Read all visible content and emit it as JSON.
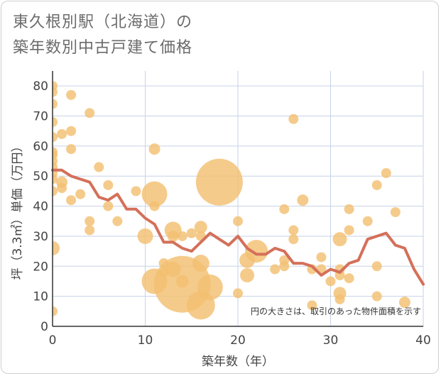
{
  "title": {
    "line1": "東久根別駅（北海道）の",
    "line2": "築年数別中古戸建て価格"
  },
  "chart_data": {
    "type": "scatter",
    "xlabel": "築年数（年）",
    "ylabel": "坪（3.3㎡）単価（万円）",
    "xlim": [
      0,
      40
    ],
    "ylim": [
      0,
      85
    ],
    "xticks": [
      0,
      10,
      20,
      30,
      40
    ],
    "yticks": [
      0,
      10,
      20,
      30,
      40,
      50,
      60,
      70,
      80
    ],
    "grid": true,
    "note": "円の大きさは、取引のあった物件面積を示す",
    "colors": {
      "bubble": "#f3c071",
      "line": "#d4705a",
      "grid": "#c6d3e6",
      "axis": "#333333"
    },
    "bubbles": [
      {
        "x": 0,
        "y": 80,
        "s": 7
      },
      {
        "x": 0,
        "y": 78,
        "s": 7
      },
      {
        "x": 0,
        "y": 74,
        "s": 7
      },
      {
        "x": 0,
        "y": 68,
        "s": 7
      },
      {
        "x": 0,
        "y": 63,
        "s": 7
      },
      {
        "x": 0,
        "y": 58,
        "s": 7
      },
      {
        "x": 0,
        "y": 57,
        "s": 7
      },
      {
        "x": 0,
        "y": 55,
        "s": 7
      },
      {
        "x": 0,
        "y": 53,
        "s": 7
      },
      {
        "x": 0,
        "y": 51,
        "s": 7
      },
      {
        "x": 0,
        "y": 49,
        "s": 7
      },
      {
        "x": 0,
        "y": 45,
        "s": 7
      },
      {
        "x": 0,
        "y": 26,
        "s": 10
      },
      {
        "x": 0,
        "y": 5,
        "s": 7
      },
      {
        "x": 1,
        "y": 64,
        "s": 7
      },
      {
        "x": 1,
        "y": 48,
        "s": 8
      },
      {
        "x": 1,
        "y": 46,
        "s": 7
      },
      {
        "x": 2,
        "y": 77,
        "s": 7
      },
      {
        "x": 2,
        "y": 65,
        "s": 7
      },
      {
        "x": 2,
        "y": 59,
        "s": 7
      },
      {
        "x": 2,
        "y": 42,
        "s": 7
      },
      {
        "x": 3,
        "y": 44,
        "s": 7
      },
      {
        "x": 4,
        "y": 71,
        "s": 7
      },
      {
        "x": 4,
        "y": 35,
        "s": 7
      },
      {
        "x": 4,
        "y": 32,
        "s": 7
      },
      {
        "x": 5,
        "y": 53,
        "s": 7
      },
      {
        "x": 6,
        "y": 47,
        "s": 7
      },
      {
        "x": 6,
        "y": 40,
        "s": 7
      },
      {
        "x": 7,
        "y": 35,
        "s": 7
      },
      {
        "x": 9,
        "y": 45,
        "s": 7
      },
      {
        "x": 10,
        "y": 30,
        "s": 11
      },
      {
        "x": 11,
        "y": 59,
        "s": 8
      },
      {
        "x": 11,
        "y": 44,
        "s": 18
      },
      {
        "x": 11,
        "y": 40,
        "s": 7
      },
      {
        "x": 11,
        "y": 15,
        "s": 18
      },
      {
        "x": 12,
        "y": 21,
        "s": 7
      },
      {
        "x": 12,
        "y": 18,
        "s": 7
      },
      {
        "x": 13,
        "y": 32,
        "s": 12
      },
      {
        "x": 13,
        "y": 30,
        "s": 8
      },
      {
        "x": 13,
        "y": 19,
        "s": 11
      },
      {
        "x": 14,
        "y": 30,
        "s": 7
      },
      {
        "x": 14,
        "y": 15,
        "s": 9
      },
      {
        "x": 14,
        "y": 14,
        "s": 40
      },
      {
        "x": 15,
        "y": 31,
        "s": 7
      },
      {
        "x": 16,
        "y": 33,
        "s": 9
      },
      {
        "x": 16,
        "y": 30,
        "s": 7
      },
      {
        "x": 16,
        "y": 21,
        "s": 12
      },
      {
        "x": 16,
        "y": 7,
        "s": 20
      },
      {
        "x": 17,
        "y": 13,
        "s": 18
      },
      {
        "x": 18,
        "y": 48,
        "s": 33
      },
      {
        "x": 20,
        "y": 35,
        "s": 7
      },
      {
        "x": 20,
        "y": 11,
        "s": 7
      },
      {
        "x": 21,
        "y": 22,
        "s": 11
      },
      {
        "x": 21,
        "y": 17,
        "s": 10
      },
      {
        "x": 22,
        "y": 25,
        "s": 16
      },
      {
        "x": 24,
        "y": 19,
        "s": 7
      },
      {
        "x": 25,
        "y": 39,
        "s": 7
      },
      {
        "x": 25,
        "y": 22,
        "s": 7
      },
      {
        "x": 25,
        "y": 20,
        "s": 7
      },
      {
        "x": 26,
        "y": 69,
        "s": 7
      },
      {
        "x": 26,
        "y": 32,
        "s": 7
      },
      {
        "x": 26,
        "y": 29,
        "s": 7
      },
      {
        "x": 27,
        "y": 42,
        "s": 8
      },
      {
        "x": 28,
        "y": 19,
        "s": 7
      },
      {
        "x": 28,
        "y": 7,
        "s": 7
      },
      {
        "x": 29,
        "y": 23,
        "s": 7
      },
      {
        "x": 29,
        "y": 19,
        "s": 7
      },
      {
        "x": 30,
        "y": 15,
        "s": 7
      },
      {
        "x": 31,
        "y": 29,
        "s": 10
      },
      {
        "x": 31,
        "y": 19,
        "s": 7
      },
      {
        "x": 31,
        "y": 17,
        "s": 7
      },
      {
        "x": 31,
        "y": 11,
        "s": 9
      },
      {
        "x": 31,
        "y": 9,
        "s": 7
      },
      {
        "x": 32,
        "y": 39,
        "s": 7
      },
      {
        "x": 32,
        "y": 32,
        "s": 7
      },
      {
        "x": 32,
        "y": 16,
        "s": 7
      },
      {
        "x": 34,
        "y": 35,
        "s": 7
      },
      {
        "x": 35,
        "y": 47,
        "s": 7
      },
      {
        "x": 35,
        "y": 20,
        "s": 7
      },
      {
        "x": 35,
        "y": 10,
        "s": 7
      },
      {
        "x": 36,
        "y": 51,
        "s": 7
      },
      {
        "x": 37,
        "y": 38,
        "s": 7
      },
      {
        "x": 38,
        "y": 8,
        "s": 8
      }
    ],
    "line": {
      "x": [
        0,
        1,
        2,
        3,
        4,
        5,
        6,
        7,
        8,
        9,
        10,
        11,
        12,
        13,
        14,
        15,
        16,
        17,
        18,
        19,
        20,
        21,
        22,
        23,
        24,
        25,
        26,
        27,
        28,
        29,
        30,
        31,
        32,
        33,
        34,
        35,
        36,
        37,
        38,
        39,
        40
      ],
      "y": [
        52,
        52,
        50,
        49,
        48,
        43,
        42,
        44,
        39,
        39,
        36,
        34,
        28,
        28,
        26,
        25,
        28,
        31,
        29,
        27,
        30,
        26,
        24,
        24,
        26,
        25,
        21,
        21,
        20,
        17,
        19,
        18,
        21,
        22,
        29,
        30,
        31,
        27,
        26,
        19,
        14
      ]
    }
  }
}
